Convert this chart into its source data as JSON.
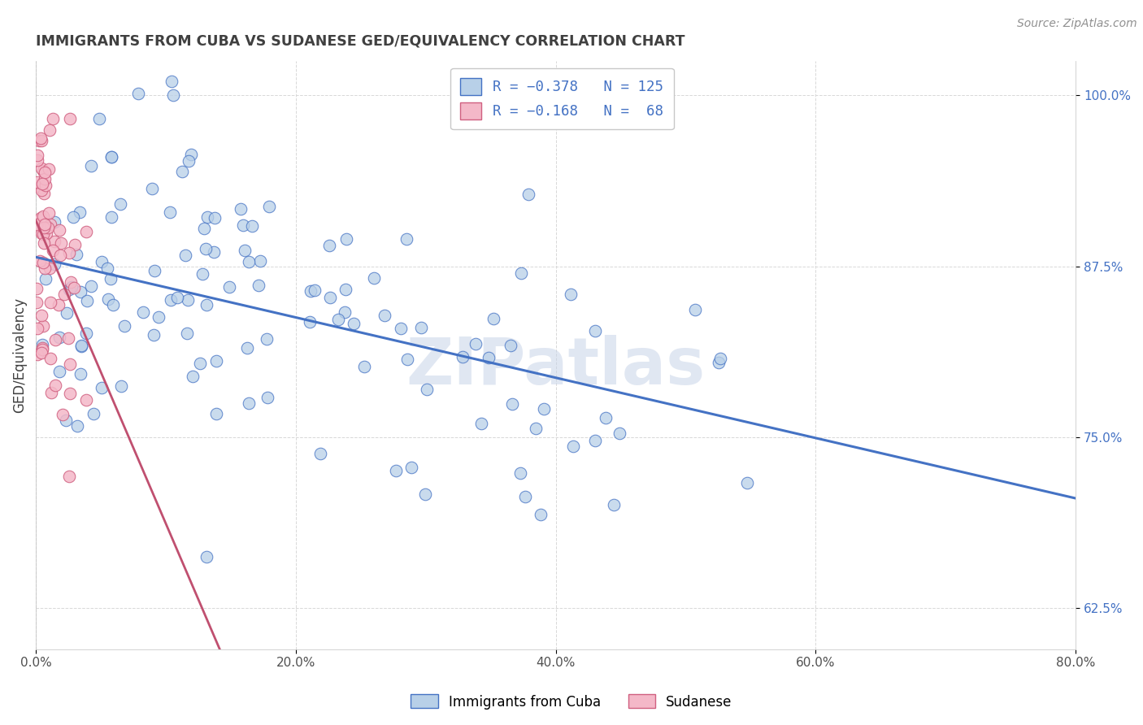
{
  "title": "IMMIGRANTS FROM CUBA VS SUDANESE GED/EQUIVALENCY CORRELATION CHART",
  "source": "Source: ZipAtlas.com",
  "ylabel": "GED/Equivalency",
  "xlim": [
    0.0,
    0.8
  ],
  "ylim": [
    0.595,
    1.025
  ],
  "xticks": [
    0.0,
    0.2,
    0.4,
    0.6,
    0.8
  ],
  "xtick_labels": [
    "0.0%",
    "20.0%",
    "40.0%",
    "60.0%",
    "80.0%"
  ],
  "yticks": [
    0.625,
    0.75,
    0.875,
    1.0
  ],
  "ytick_labels": [
    "62.5%",
    "75.0%",
    "87.5%",
    "100.0%"
  ],
  "legend_label1": "Immigrants from Cuba",
  "legend_label2": "Sudanese",
  "blue_fill": "#b8d0e8",
  "blue_edge": "#4472c4",
  "pink_fill": "#f4b8c8",
  "pink_edge": "#d06080",
  "blue_line": "#4472c4",
  "pink_line": "#c05070",
  "dashed_line": "#d0a0b0",
  "legend_text_color": "#4472c4",
  "title_color": "#404040",
  "grid_color": "#d8d8d8",
  "bg_color": "#ffffff",
  "watermark_color": "#c8d4e8",
  "source_color": "#909090"
}
